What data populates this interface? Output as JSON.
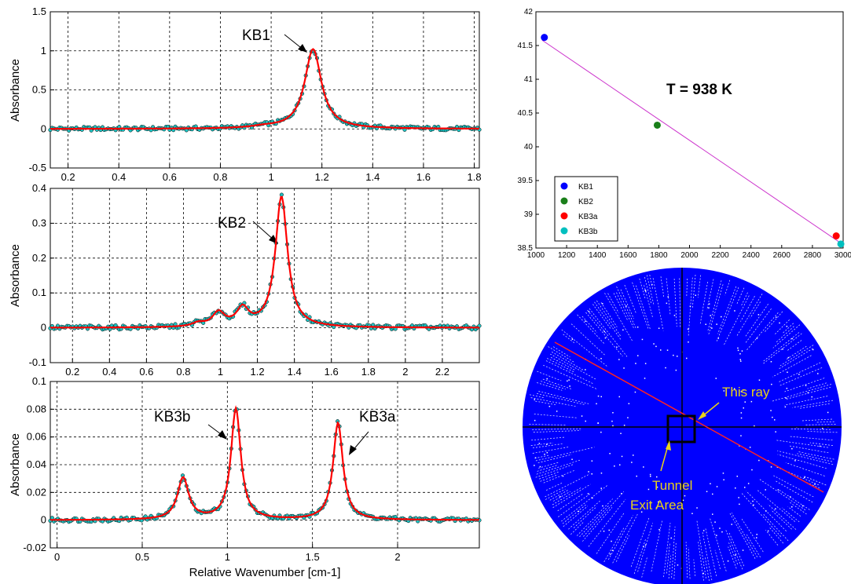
{
  "chart_data": [
    {
      "type": "line",
      "ylabel": "Absorbance",
      "xlabel": "",
      "xlim": [
        0.13,
        1.82
      ],
      "ylim": [
        -0.5,
        1.5
      ],
      "xticks": [
        "0.2",
        "0.4",
        "0.6",
        "0.8",
        "1",
        "1.2",
        "1.4",
        "1.6",
        "1.8"
      ],
      "yticks": [
        "-0.5",
        "0",
        "0.5",
        "1",
        "1.5"
      ],
      "peaks": [
        {
          "center": 1.165,
          "height": 1.02,
          "width": 0.04
        },
        {
          "center": 0.97,
          "height": 0.02,
          "width": 0.06
        }
      ],
      "annotations": [
        {
          "text": "KB1",
          "x": 1.165,
          "y": 1.02
        }
      ]
    },
    {
      "type": "line",
      "ylabel": "Absorbance",
      "xlabel": "",
      "xlim": [
        0.08,
        2.4
      ],
      "ylim": [
        -0.1,
        0.4
      ],
      "xticks": [
        "0.2",
        "0.4",
        "0.6",
        "0.8",
        "1",
        "1.2",
        "1.4",
        "1.6",
        "1.8",
        "2",
        "2.2"
      ],
      "yticks": [
        "-0.1",
        "0",
        "0.1",
        "0.2",
        "0.3",
        "0.4"
      ],
      "peaks": [
        {
          "center": 1.33,
          "height": 0.375,
          "width": 0.04
        },
        {
          "center": 0.99,
          "height": 0.04,
          "width": 0.04
        },
        {
          "center": 1.12,
          "height": 0.05,
          "width": 0.04
        },
        {
          "center": 0.88,
          "height": 0.01,
          "width": 0.04
        }
      ],
      "annotations": [
        {
          "text": "KB2",
          "x": 1.33,
          "y": 0.375
        }
      ]
    },
    {
      "type": "line",
      "ylabel": "Absorbance",
      "xlabel": "Relative Wavenumber [cm-1]",
      "xlim": [
        -0.04,
        2.48
      ],
      "ylim": [
        -0.02,
        0.1
      ],
      "xticks": [
        "0",
        "0.5",
        "1",
        "1.5",
        "2"
      ],
      "yticks": [
        "-0.02",
        "0",
        "0.02",
        "0.04",
        "0.06",
        "0.08",
        "0.1"
      ],
      "peaks": [
        {
          "center": 1.05,
          "height": 0.08,
          "width": 0.035
        },
        {
          "center": 1.65,
          "height": 0.07,
          "width": 0.035
        },
        {
          "center": 0.74,
          "height": 0.03,
          "width": 0.04
        }
      ],
      "annotations": [
        {
          "text": "KB3b",
          "x": 1.05,
          "y": 0.08
        },
        {
          "text": "KB3a",
          "x": 1.65,
          "y": 0.07
        }
      ]
    },
    {
      "type": "scatter",
      "title": "T = 938 K",
      "xlim": [
        1000,
        3000
      ],
      "ylim": [
        38.5,
        42
      ],
      "xticks": [
        "1000",
        "1200",
        "1400",
        "1600",
        "1800",
        "2000",
        "2200",
        "2400",
        "2600",
        "2800",
        "3000"
      ],
      "yticks": [
        "38.5",
        "39",
        "39.5",
        "40",
        "40.5",
        "41",
        "41.5",
        "42"
      ],
      "series": [
        {
          "name": "KB1",
          "color": "#0000ff",
          "x": [
            1055
          ],
          "y": [
            41.62
          ]
        },
        {
          "name": "KB2",
          "color": "#1a7f1a",
          "x": [
            1790
          ],
          "y": [
            40.32
          ]
        },
        {
          "name": "KB3a",
          "color": "#ff0000",
          "x": [
            2955
          ],
          "y": [
            38.68
          ]
        },
        {
          "name": "KB3b",
          "color": "#00bfbf",
          "x": [
            2985
          ],
          "y": [
            38.56
          ]
        }
      ],
      "fit_line": {
        "x": [
          1040,
          3000
        ],
        "y": [
          41.58,
          38.55
        ],
        "color": "#cc33cc"
      },
      "legend": "left-bottom"
    }
  ],
  "diagram": {
    "disk_color": "#0000ff",
    "ray_color": "#ff2222",
    "label_color": "#e8d21a",
    "ray_label": "This ray",
    "exit_label_line1": "Tunnel",
    "exit_label_line2": "Exit Area"
  },
  "colors": {
    "fit": "#ff0000",
    "marker": "#20c0c0"
  }
}
